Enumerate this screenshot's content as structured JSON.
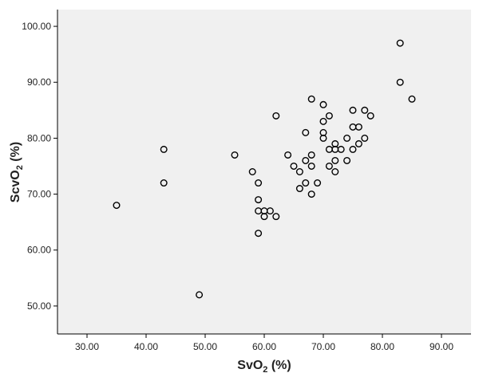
{
  "chart_data": {
    "type": "scatter",
    "title": "",
    "xlabel": "SvO₂ (%)",
    "ylabel": "ScvO₂ (%)",
    "xlabel_parts": {
      "prefix": "SvO",
      "sub": "2",
      "suffix": " (%)"
    },
    "ylabel_parts": {
      "prefix": "ScvO",
      "sub": "2",
      "suffix": " (%)"
    },
    "xlim": [
      25,
      95
    ],
    "ylim": [
      45,
      103
    ],
    "xticks": [
      30,
      40,
      50,
      60,
      70,
      80,
      90
    ],
    "yticks": [
      50,
      60,
      70,
      80,
      90,
      100
    ],
    "xtick_labels": [
      "30.00",
      "40.00",
      "50.00",
      "60.00",
      "70.00",
      "80.00",
      "90.00"
    ],
    "ytick_labels": [
      "50.00",
      "60.00",
      "70.00",
      "80.00",
      "90.00",
      "100.00"
    ],
    "grid": false,
    "marker": "open-circle",
    "colors": {
      "plot_background": "#f0f0f0",
      "marker_stroke": "#000000",
      "axis": "#000000"
    },
    "series": [
      {
        "points": [
          [
            35,
            68
          ],
          [
            43,
            78
          ],
          [
            43,
            72
          ],
          [
            49,
            52
          ],
          [
            55,
            77
          ],
          [
            58,
            74
          ],
          [
            59,
            72
          ],
          [
            59,
            69
          ],
          [
            59,
            67
          ],
          [
            59,
            63
          ],
          [
            60,
            67
          ],
          [
            60,
            66
          ],
          [
            61,
            67
          ],
          [
            62,
            66
          ],
          [
            62,
            84
          ],
          [
            64,
            77
          ],
          [
            65,
            75
          ],
          [
            66,
            74
          ],
          [
            66,
            71
          ],
          [
            67,
            81
          ],
          [
            67,
            76
          ],
          [
            67,
            72
          ],
          [
            68,
            87
          ],
          [
            68,
            77
          ],
          [
            68,
            75
          ],
          [
            68,
            70
          ],
          [
            69,
            72
          ],
          [
            70,
            86
          ],
          [
            70,
            83
          ],
          [
            70,
            81
          ],
          [
            70,
            80
          ],
          [
            71,
            84
          ],
          [
            71,
            78
          ],
          [
            71,
            75
          ],
          [
            72,
            79
          ],
          [
            72,
            78
          ],
          [
            72,
            76
          ],
          [
            72,
            74
          ],
          [
            73,
            78
          ],
          [
            74,
            80
          ],
          [
            74,
            76
          ],
          [
            75,
            85
          ],
          [
            75,
            82
          ],
          [
            75,
            78
          ],
          [
            76,
            82
          ],
          [
            76,
            79
          ],
          [
            77,
            85
          ],
          [
            77,
            80
          ],
          [
            78,
            84
          ],
          [
            83,
            97
          ],
          [
            83,
            90
          ],
          [
            85,
            87
          ]
        ]
      }
    ]
  }
}
